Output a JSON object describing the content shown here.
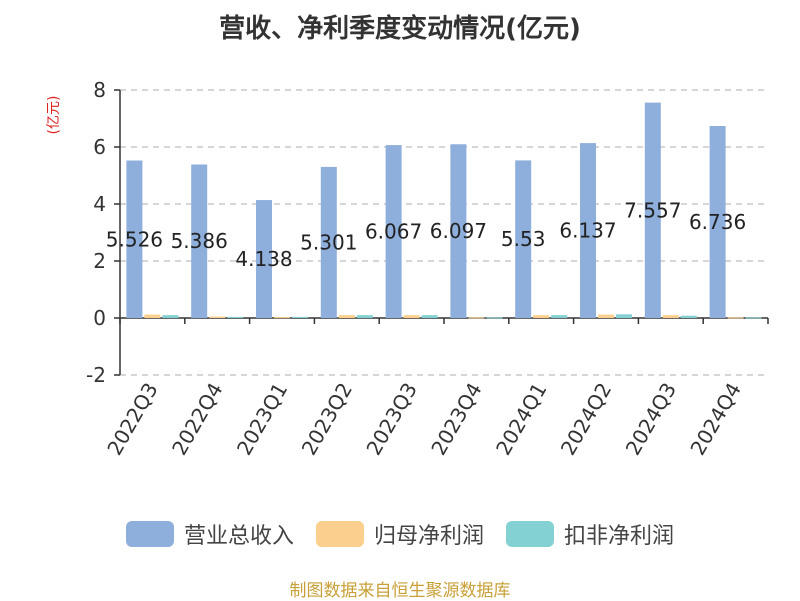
{
  "chart_data": {
    "type": "bar",
    "title": "营收、净利季度变动情况(亿元)",
    "ylabel": "(亿元)",
    "ylim": [
      -2,
      8
    ],
    "yticks": [
      -2,
      0,
      2,
      4,
      6,
      8
    ],
    "grid": true,
    "legend_position": "bottom",
    "categories": [
      "2022Q3",
      "2022Q4",
      "2023Q1",
      "2023Q2",
      "2023Q3",
      "2023Q4",
      "2024Q1",
      "2024Q2",
      "2024Q3",
      "2024Q4"
    ],
    "series": [
      {
        "name": "营业总收入",
        "color": "#8eaedc",
        "values": [
          5.526,
          5.386,
          4.138,
          5.301,
          6.067,
          6.097,
          5.53,
          6.137,
          7.557,
          6.736
        ],
        "data_labels": [
          "5.526",
          "5.386",
          "4.138",
          "5.301",
          "6.067",
          "6.097",
          "5.53",
          "6.137",
          "7.557",
          "6.736"
        ]
      },
      {
        "name": "归母净利润",
        "color": "#fbd08e",
        "values": [
          0.12,
          0.05,
          0.03,
          0.1,
          0.1,
          0.02,
          0.1,
          0.12,
          0.1,
          0.02
        ]
      },
      {
        "name": "扣非净利润",
        "color": "#83d1d3",
        "values": [
          0.1,
          0.04,
          0.04,
          0.1,
          0.1,
          0.02,
          0.1,
          0.13,
          0.08,
          0.02
        ]
      }
    ]
  },
  "source_note": "制图数据来自恒生聚源数据库"
}
